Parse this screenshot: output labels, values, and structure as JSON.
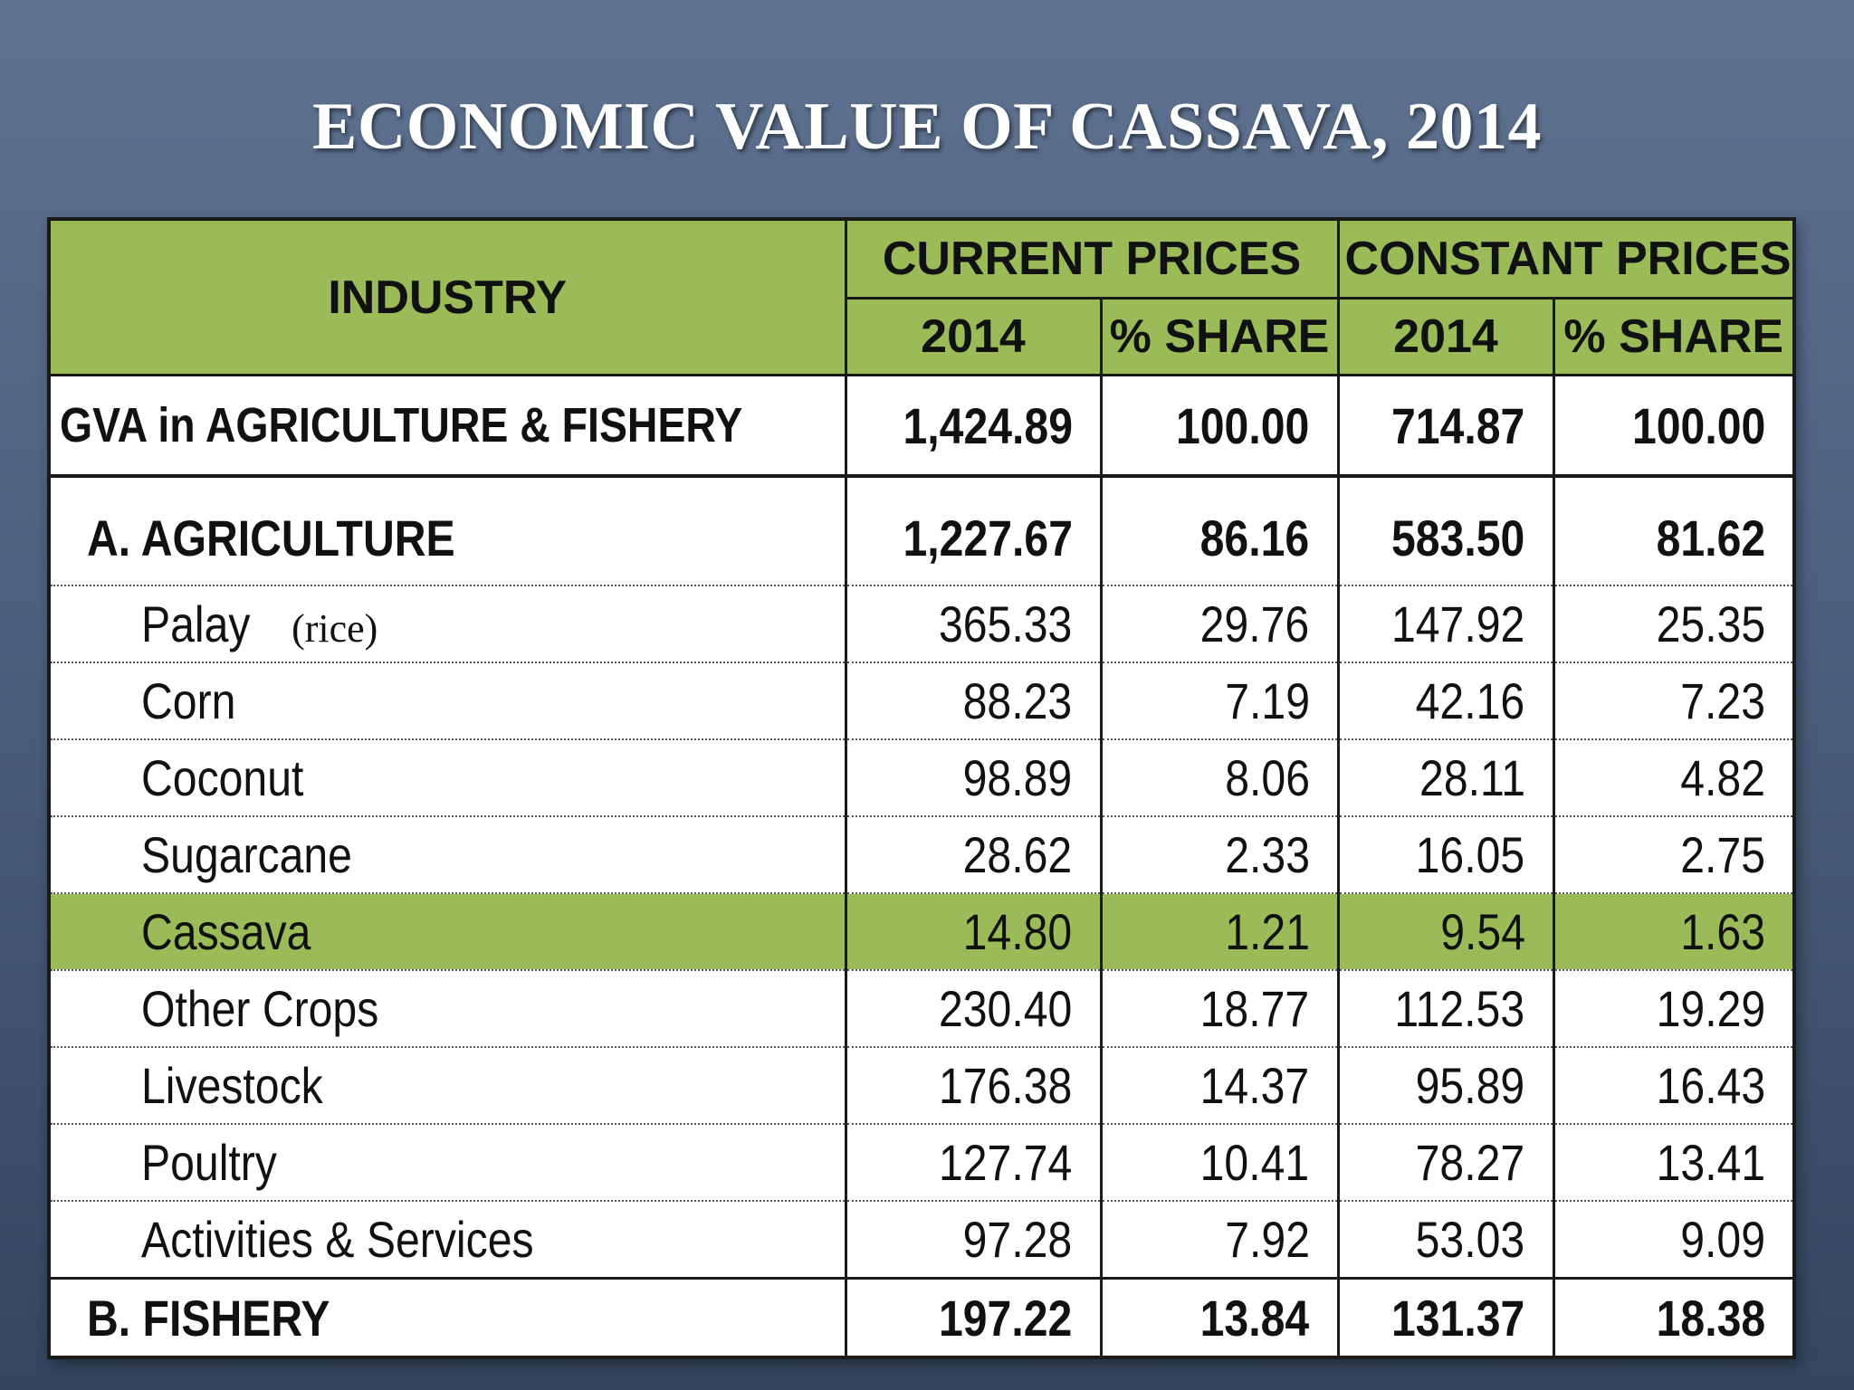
{
  "title": "ECONOMIC VALUE OF CASSAVA, 2014",
  "table": {
    "headers": {
      "industry": "INDUSTRY",
      "current_prices": "CURRENT PRICES",
      "constant_prices": "CONSTANT PRICES",
      "year": "2014",
      "share": "% SHARE"
    },
    "total": {
      "name": "GVA in AGRICULTURE & FISHERY",
      "cur": "1,424.89",
      "cur_share": "100.00",
      "con": "714.87",
      "con_share": "100.00"
    },
    "agriculture": {
      "name": "A. AGRICULTURE",
      "cur": "1,227.67",
      "cur_share": "86.16",
      "con": "583.50",
      "con_share": "81.62"
    },
    "rows": [
      {
        "name": "Palay",
        "note": "(rice)",
        "cur": "365.33",
        "cur_share": "29.76",
        "con": "147.92",
        "con_share": "25.35"
      },
      {
        "name": "Corn",
        "cur": "88.23",
        "cur_share": "7.19",
        "con": "42.16",
        "con_share": "7.23"
      },
      {
        "name": "Coconut",
        "cur": "98.89",
        "cur_share": "8.06",
        "con": "28.11",
        "con_share": "4.82"
      },
      {
        "name": "Sugarcane",
        "cur": "28.62",
        "cur_share": "2.33",
        "con": "16.05",
        "con_share": "2.75"
      },
      {
        "name": "Cassava",
        "cur": "14.80",
        "cur_share": "1.21",
        "con": "9.54",
        "con_share": "1.63"
      },
      {
        "name": "Other Crops",
        "cur": "230.40",
        "cur_share": "18.77",
        "con": "112.53",
        "con_share": "19.29"
      },
      {
        "name": "Livestock",
        "cur": "176.38",
        "cur_share": "14.37",
        "con": "95.89",
        "con_share": "16.43"
      },
      {
        "name": "Poultry",
        "cur": "127.74",
        "cur_share": "10.41",
        "con": "78.27",
        "con_share": "13.41"
      },
      {
        "name": "Activities & Services",
        "cur": "97.28",
        "cur_share": "7.92",
        "con": "53.03",
        "con_share": "9.09"
      }
    ],
    "fishery": {
      "name": "B. FISHERY",
      "cur": "197.22",
      "cur_share": "13.84",
      "con": "131.37",
      "con_share": "18.38"
    }
  },
  "colors": {
    "header_green": "#9bbb59",
    "highlight_green": "#9bbb59",
    "background": "#4c5f7e"
  }
}
